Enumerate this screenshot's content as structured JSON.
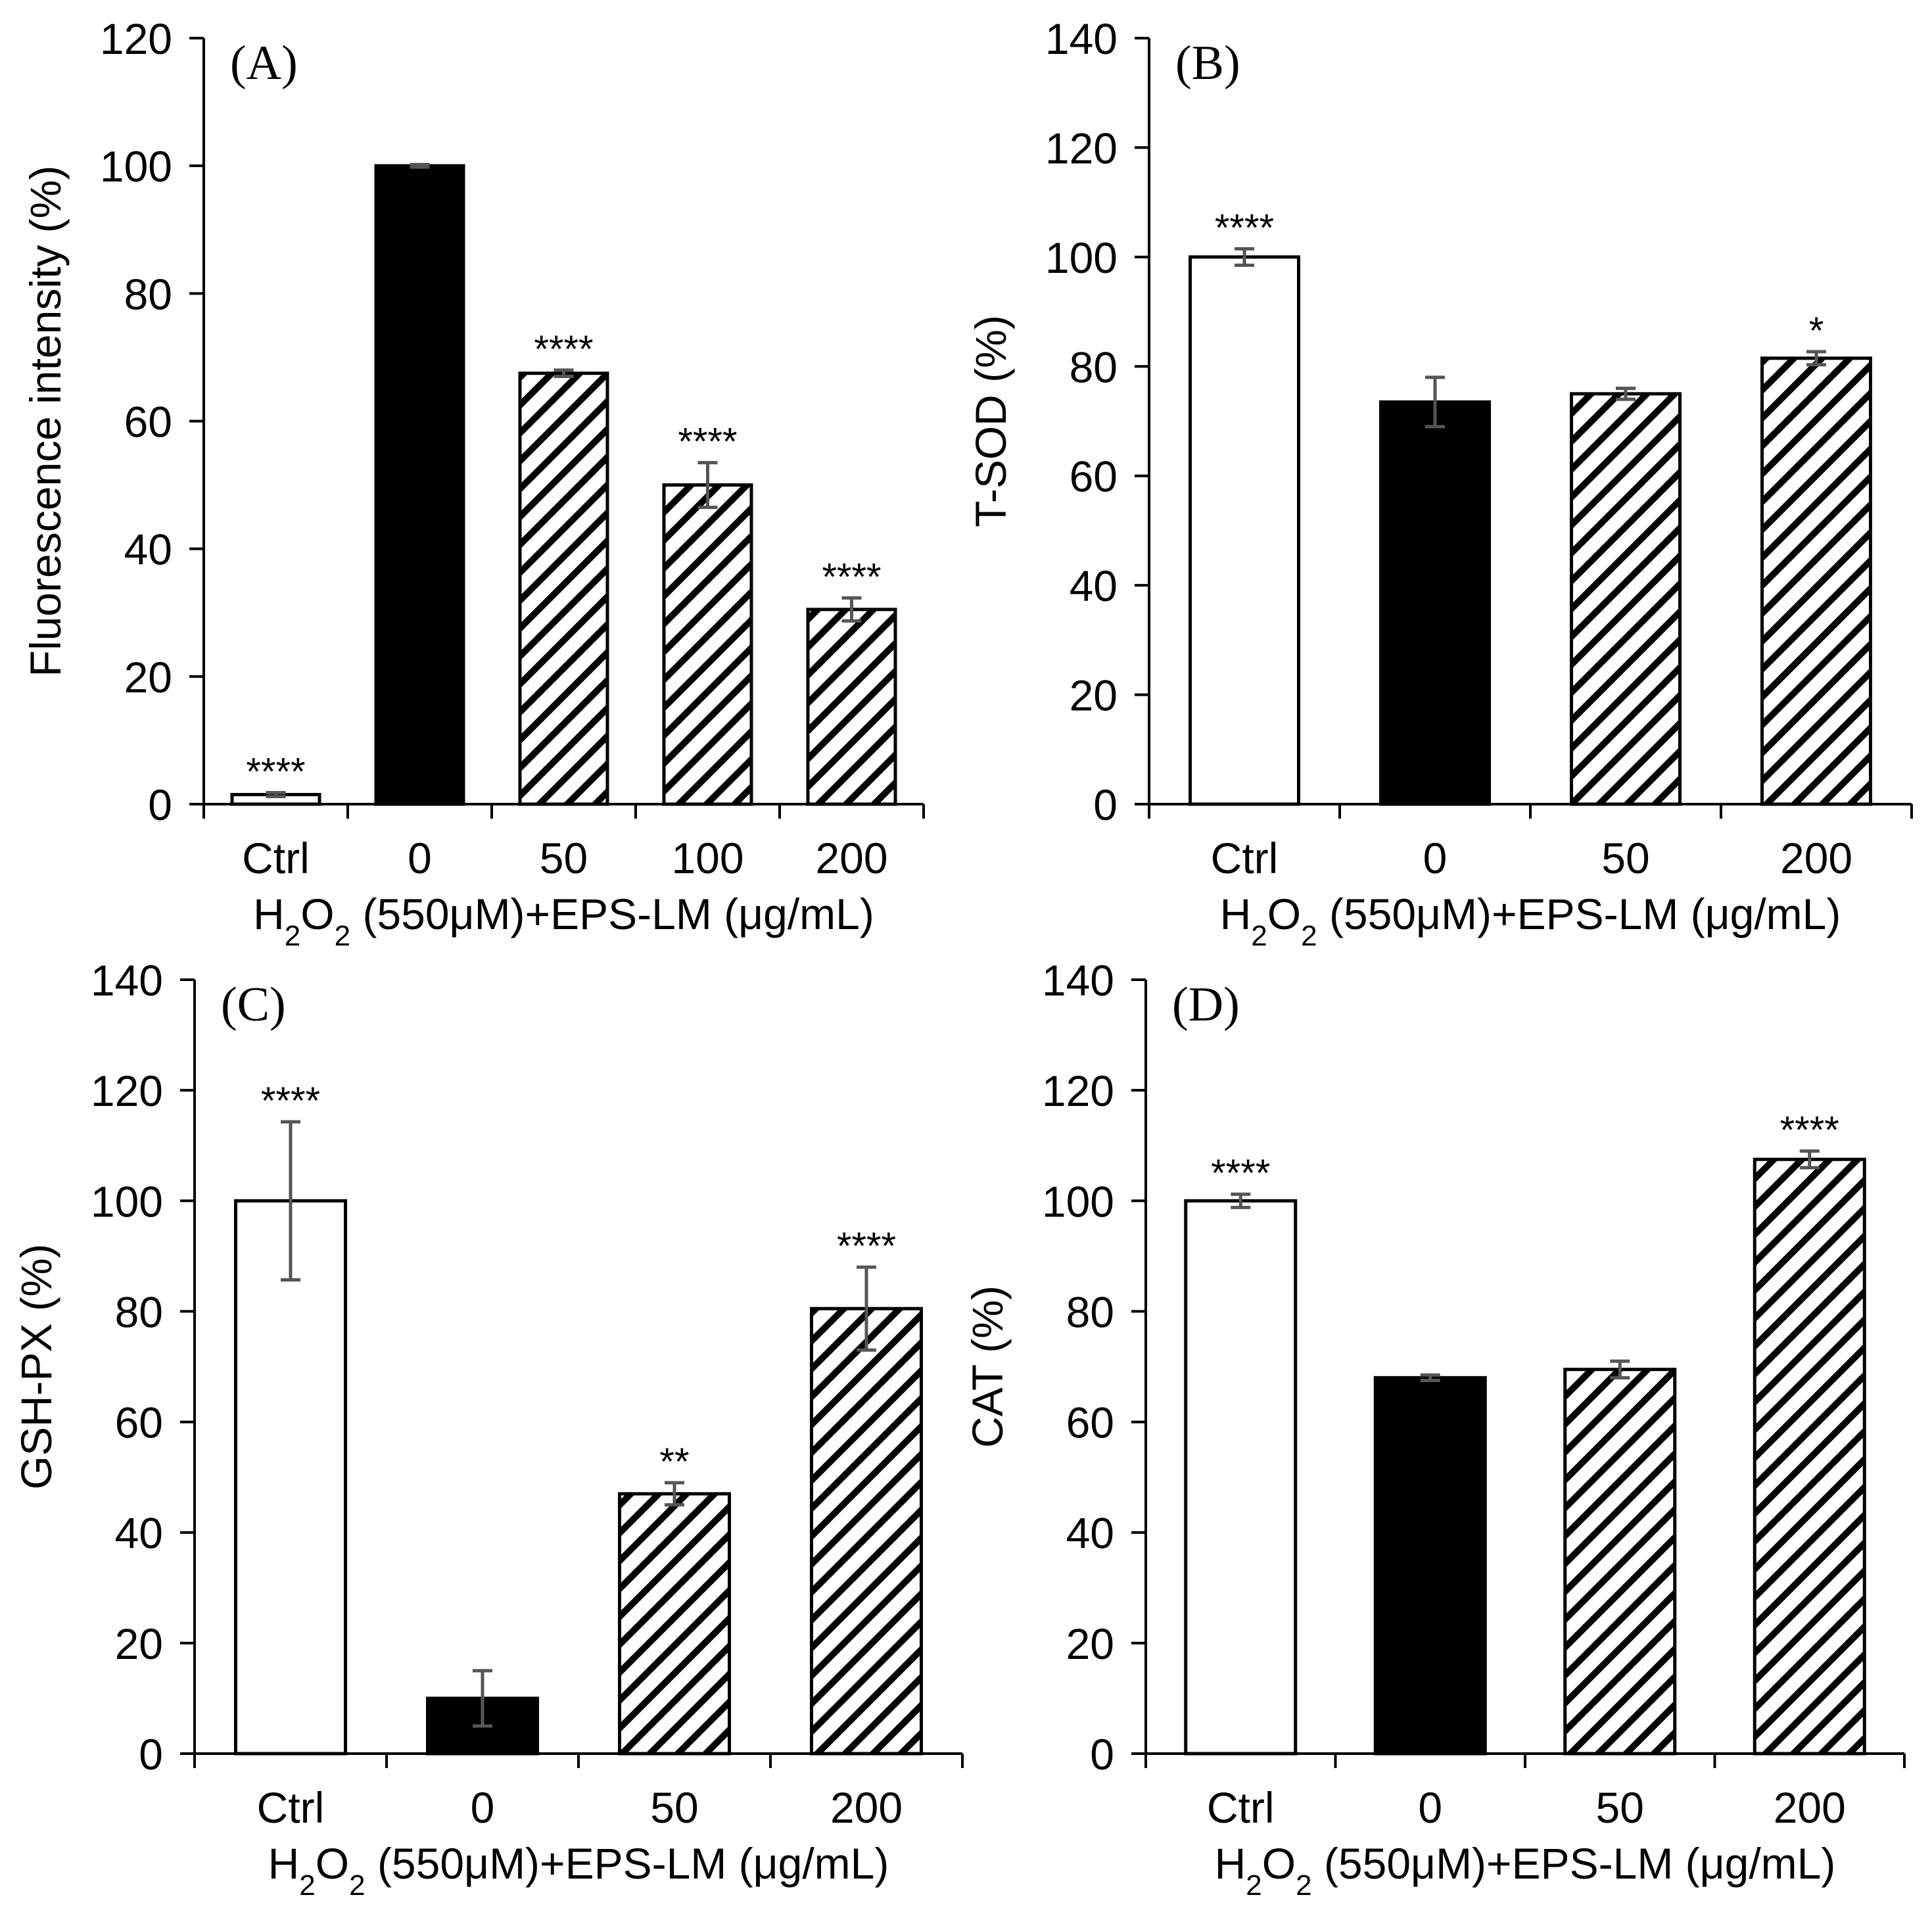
{
  "colors": {
    "axis": "#000000",
    "error_bar": "#555555",
    "ctrl_fill": "#ffffff",
    "zero_fill": "#000000",
    "hatch_bg": "#ffffff",
    "hatch_line": "#000000"
  },
  "chart_data": [
    {
      "panel": "(A)",
      "type": "bar",
      "ylabel": "Fluorescence intensity (%)",
      "ylim": [
        0,
        120
      ],
      "yticks": [
        "0",
        "20",
        "40",
        "60",
        "80",
        "100",
        "120"
      ],
      "categories": [
        "Ctrl",
        "0",
        "50",
        "100",
        "200"
      ],
      "values": [
        1.5,
        100,
        67.5,
        50,
        30.5
      ],
      "errors": [
        0.3,
        0.2,
        0.5,
        3.5,
        1.8
      ],
      "significance": [
        "****",
        "",
        "****",
        "****",
        "****"
      ],
      "fills": [
        "white",
        "black",
        "hatch",
        "hatch",
        "hatch"
      ],
      "xlabel_parts": [
        "H",
        "2",
        "O",
        "2",
        " (550μM)+EPS-LM (μg/mL)"
      ]
    },
    {
      "panel": "(B)",
      "type": "bar",
      "ylabel": "T-SOD  (%)",
      "ylim": [
        0,
        140
      ],
      "yticks": [
        "0",
        "20",
        "40",
        "60",
        "80",
        "100",
        "120",
        "140"
      ],
      "categories": [
        "Ctrl",
        "0",
        "50",
        "200"
      ],
      "values": [
        100,
        73.5,
        75,
        81.5
      ],
      "errors": [
        1.5,
        4.5,
        1,
        1.2
      ],
      "significance": [
        "****",
        "",
        "",
        "*"
      ],
      "fills": [
        "white",
        "black",
        "hatch",
        "hatch"
      ],
      "xlabel_parts": [
        "H",
        "2",
        "O",
        "2",
        " (550μM)+EPS-LM (μg/mL)"
      ]
    },
    {
      "panel": "(C)",
      "type": "bar",
      "ylabel": "GSH-PX (%)",
      "ylim": [
        0,
        140
      ],
      "yticks": [
        "0",
        "20",
        "40",
        "60",
        "80",
        "100",
        "120",
        "140"
      ],
      "categories": [
        "Ctrl",
        "0",
        "50",
        "200"
      ],
      "values": [
        100,
        10,
        47,
        80.5
      ],
      "errors": [
        14.3,
        5,
        2,
        7.5
      ],
      "significance": [
        "****",
        "",
        "**",
        "****"
      ],
      "fills": [
        "white",
        "black",
        "hatch",
        "hatch"
      ],
      "xlabel_parts": [
        "H",
        "2",
        "O",
        "2",
        " (550μM)+EPS-LM (μg/mL)"
      ]
    },
    {
      "panel": "(D)",
      "type": "bar",
      "ylabel": "CAT (%)",
      "ylim": [
        0,
        140
      ],
      "yticks": [
        "0",
        "20",
        "40",
        "60",
        "80",
        "100",
        "120",
        "140"
      ],
      "categories": [
        "Ctrl",
        "0",
        "50",
        "200"
      ],
      "values": [
        100,
        68,
        69.5,
        107.5
      ],
      "errors": [
        1.2,
        0.5,
        1.5,
        1.5
      ],
      "significance": [
        "****",
        "",
        "",
        "****"
      ],
      "fills": [
        "white",
        "black",
        "hatch",
        "hatch"
      ],
      "xlabel_parts": [
        "H",
        "2",
        "O",
        "2",
        " (550μM)+EPS-LM (μg/mL)"
      ]
    }
  ]
}
